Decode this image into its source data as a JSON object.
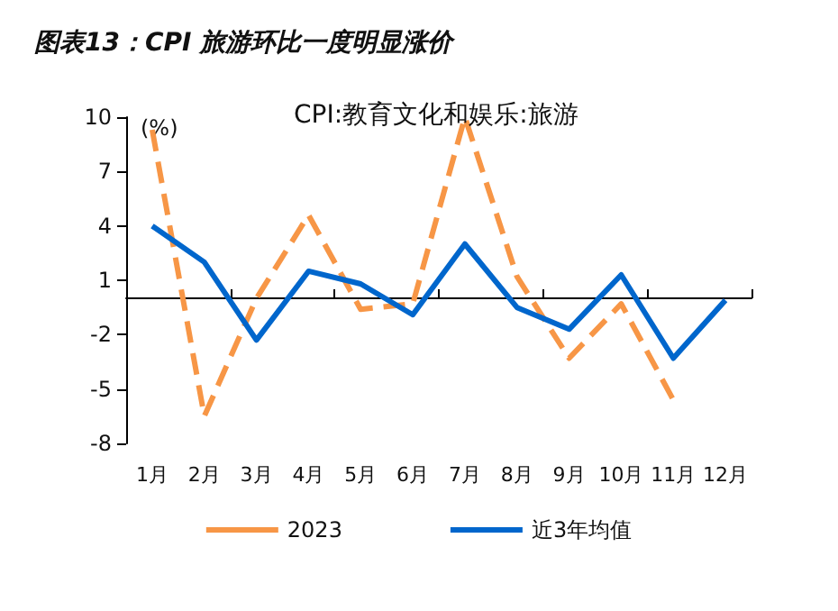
{
  "chart_data": {
    "type": "line",
    "title": "图表13：CPI 旅游环比一度明显涨价",
    "subtitle": "CPI:教育文化和娱乐:旅游",
    "ylabel": "(%)",
    "categories": [
      "1月",
      "2月",
      "3月",
      "4月",
      "5月",
      "6月",
      "7月",
      "8月",
      "9月",
      "10月",
      "11月",
      "12月"
    ],
    "series": [
      {
        "name": "2023",
        "color": "#f79646",
        "line_style": "dashed",
        "values": [
          9.3,
          -6.5,
          0.0,
          4.6,
          -0.6,
          -0.3,
          10.0,
          1.2,
          -3.3,
          -0.3,
          -5.6,
          null
        ]
      },
      {
        "name": "近3年均值",
        "color": "#0066cc",
        "line_style": "solid",
        "values": [
          4.0,
          2.0,
          -2.3,
          1.5,
          0.8,
          -0.9,
          3.0,
          -0.5,
          -1.7,
          1.3,
          -3.3,
          -0.1
        ]
      }
    ],
    "ylim": [
      -8,
      10
    ],
    "yticks": [
      -8,
      -5,
      -2,
      1,
      4,
      7,
      10
    ],
    "grid": false,
    "legend": "bottom",
    "marker": "none"
  }
}
